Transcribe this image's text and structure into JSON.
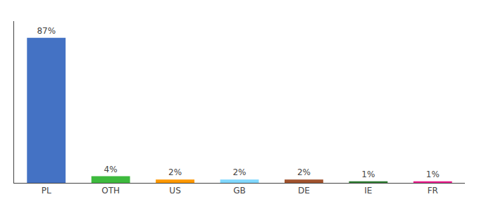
{
  "chart_data": {
    "type": "bar",
    "categories": [
      "PL",
      "OTH",
      "US",
      "GB",
      "DE",
      "IE",
      "FR"
    ],
    "values": [
      87,
      4,
      2,
      2,
      2,
      1,
      1
    ],
    "value_labels": [
      "87%",
      "4%",
      "2%",
      "2%",
      "2%",
      "1%",
      "1%"
    ],
    "data_labels": true,
    "colors": [
      "#4472c4",
      "#3dba3d",
      "#ff9800",
      "#80d8ff",
      "#a0522d",
      "#2e7d32",
      "#e91e8c"
    ],
    "ylim": [
      0,
      97
    ],
    "grid": false,
    "tick_labels": "x"
  }
}
